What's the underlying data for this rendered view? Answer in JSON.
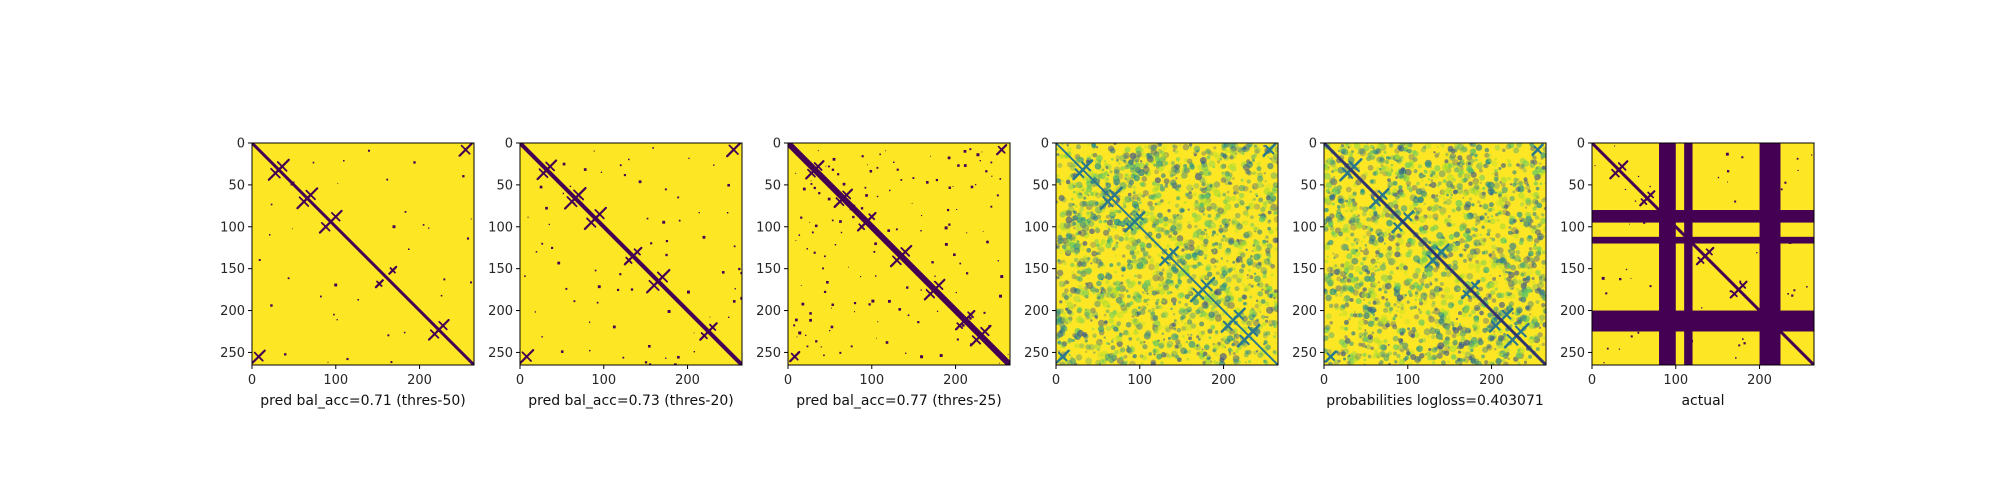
{
  "colors": {
    "yellow": "#fde725",
    "purple": "#440154",
    "teal": "#21908d",
    "green": "#5ec962",
    "axis": "#000000"
  },
  "chart_data": [
    {
      "type": "heatmap",
      "title": "",
      "xlabel": "pred bal_acc=0.71 (thres-50)",
      "ylabel": "",
      "xlim": [
        0,
        265
      ],
      "ylim": [
        265,
        0
      ],
      "xticks": [
        0,
        100,
        200
      ],
      "yticks": [
        0,
        50,
        100,
        150,
        200,
        250
      ],
      "colormap": "viridis",
      "matrix_size": 265,
      "binary": true,
      "diagonal_width": 3,
      "cluster_centers": [
        [
          36,
          28
        ],
        [
          70,
          62
        ],
        [
          100,
          88
        ],
        [
          168,
          152
        ],
        [
          228,
          218
        ],
        [
          255,
          8
        ]
      ],
      "speckle_density": 0.02
    },
    {
      "type": "heatmap",
      "title": "",
      "xlabel": "pred bal_acc=0.73 (thres-20)",
      "ylabel": "",
      "xlim": [
        0,
        265
      ],
      "ylim": [
        265,
        0
      ],
      "xticks": [
        0,
        100,
        200
      ],
      "yticks": [
        0,
        50,
        100,
        150,
        200,
        250
      ],
      "colormap": "viridis",
      "matrix_size": 265,
      "binary": true,
      "diagonal_width": 4,
      "cluster_centers": [
        [
          36,
          28
        ],
        [
          70,
          62
        ],
        [
          95,
          85
        ],
        [
          140,
          130
        ],
        [
          170,
          160
        ],
        [
          230,
          220
        ],
        [
          255,
          8
        ]
      ],
      "speckle_density": 0.04
    },
    {
      "type": "heatmap",
      "title": "",
      "xlabel": "pred bal_acc=0.77 (thres-25)",
      "ylabel": "",
      "xlim": [
        0,
        265
      ],
      "ylim": [
        265,
        0
      ],
      "xticks": [
        0,
        100,
        200
      ],
      "yticks": [
        0,
        50,
        100,
        150,
        200,
        250
      ],
      "colormap": "viridis",
      "matrix_size": 265,
      "binary": true,
      "diagonal_width": 6,
      "cluster_centers": [
        [
          36,
          28
        ],
        [
          70,
          62
        ],
        [
          100,
          88
        ],
        [
          140,
          130
        ],
        [
          180,
          170
        ],
        [
          218,
          205
        ],
        [
          235,
          225
        ],
        [
          255,
          8
        ]
      ],
      "speckle_density": 0.08
    },
    {
      "type": "heatmap",
      "title": "",
      "xlabel": "",
      "ylabel": "",
      "xlim": [
        0,
        265
      ],
      "ylim": [
        265,
        0
      ],
      "xticks": [
        0,
        100,
        200
      ],
      "yticks": [
        0,
        50,
        100,
        150,
        200,
        250
      ],
      "colormap": "viridis",
      "matrix_size": 265,
      "binary": false,
      "diagonal_width": 2,
      "cluster_centers": [
        [
          36,
          28
        ],
        [
          70,
          62
        ],
        [
          100,
          88
        ],
        [
          140,
          130
        ],
        [
          180,
          170
        ],
        [
          218,
          205
        ],
        [
          235,
          225
        ],
        [
          255,
          8
        ]
      ],
      "speckle_density": 0.35
    },
    {
      "type": "heatmap",
      "title": "",
      "xlabel": "probabilities logloss=0.403071",
      "ylabel": "",
      "xlim": [
        0,
        265
      ],
      "ylim": [
        265,
        0
      ],
      "xticks": [
        0,
        100,
        200
      ],
      "yticks": [
        0,
        50,
        100,
        150,
        200,
        250
      ],
      "colormap": "viridis",
      "matrix_size": 265,
      "binary": false,
      "diagonal_width": 3,
      "cluster_centers": [
        [
          36,
          28
        ],
        [
          70,
          62
        ],
        [
          100,
          88
        ],
        [
          140,
          130
        ],
        [
          180,
          170
        ],
        [
          218,
          205
        ],
        [
          235,
          225
        ],
        [
          255,
          8
        ]
      ],
      "speckle_density": 0.35
    },
    {
      "type": "heatmap",
      "title": "",
      "xlabel": "actual",
      "ylabel": "",
      "xlim": [
        0,
        265
      ],
      "ylim": [
        265,
        0
      ],
      "xticks": [
        0,
        100,
        200
      ],
      "yticks": [
        0,
        50,
        100,
        150,
        200,
        250
      ],
      "colormap": "viridis",
      "matrix_size": 265,
      "binary": true,
      "diagonal_width": 3,
      "cluster_centers": [
        [
          36,
          28
        ],
        [
          70,
          62
        ],
        [
          100,
          88
        ],
        [
          140,
          130
        ],
        [
          180,
          170
        ],
        [
          225,
          215
        ]
      ],
      "speckle_density": 0.04,
      "masked_bands": [
        [
          80,
          100
        ],
        [
          110,
          120
        ],
        [
          200,
          225
        ]
      ]
    }
  ]
}
